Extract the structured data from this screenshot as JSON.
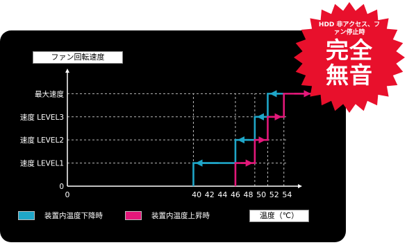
{
  "badge": {
    "small": "HDD 非アクセス、ファン停止時",
    "big": "完全無音",
    "color": "#e8102c"
  },
  "colors": {
    "cooling": "#1fa6c8",
    "heating": "#e3187a",
    "axis": "#ffffff",
    "guide": "#bbbbbb"
  },
  "chart_data": {
    "type": "line",
    "ylabel": "ファン回転速度",
    "xlabel": "温度（℃）",
    "x_ticks": [
      0,
      40,
      44,
      48,
      52,
      56,
      60,
      64,
      68
    ],
    "x_tick_labels": [
      "0",
      "40",
      "42",
      "44",
      "46",
      "48",
      "50",
      "52",
      "54"
    ],
    "x_range": [
      0,
      72
    ],
    "y_categories": [
      "0",
      "速度 LEVEL1",
      "速度 LEVEL2",
      "速度 LEVEL3",
      "最大速度"
    ],
    "y_values": [
      0,
      1,
      2,
      3,
      4
    ],
    "y_range": [
      0,
      4.4
    ],
    "grid": false,
    "legend_position": "bottom-left",
    "series": [
      {
        "name": "装置内温度下降時",
        "points": [
          [
            39,
            0
          ],
          [
            39,
            1
          ],
          [
            52,
            1
          ],
          [
            52,
            2
          ],
          [
            58,
            2
          ],
          [
            58,
            3
          ],
          [
            62,
            3
          ],
          [
            62,
            4
          ],
          [
            67,
            4
          ]
        ]
      },
      {
        "name": "装置内温度上昇時",
        "points": [
          [
            52,
            0
          ],
          [
            52,
            1
          ],
          [
            58,
            1
          ],
          [
            58,
            2
          ],
          [
            62,
            2
          ],
          [
            62,
            3
          ],
          [
            67,
            3
          ],
          [
            67,
            4
          ],
          [
            76,
            4
          ]
        ]
      }
    ]
  }
}
